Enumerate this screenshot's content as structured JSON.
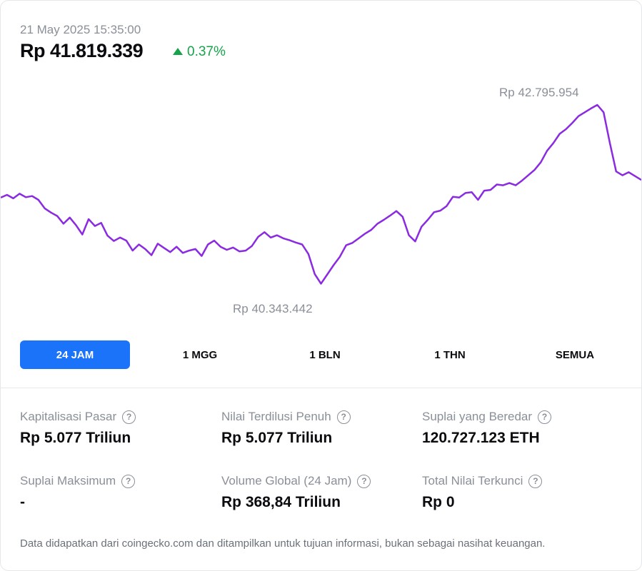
{
  "header": {
    "timestamp": "21 May 2025 15:35:00",
    "price": "Rp 41.819.339",
    "change": "0.37%",
    "change_direction": "up",
    "change_color": "#16a34a"
  },
  "chart_data": {
    "type": "line",
    "high_label": "Rp 42.795.954",
    "low_label": "Rp 40.343.442",
    "ylim": [
      40343442,
      42795954
    ],
    "line_color": "#8a2be2",
    "series": [
      {
        "values": [
          41590000,
          41625000,
          41580000,
          41640000,
          41595000,
          41610000,
          41560000,
          41450000,
          41395000,
          41350000,
          41250000,
          41330000,
          41230000,
          41110000,
          41310000,
          41220000,
          41260000,
          41095000,
          41025000,
          41070000,
          41030000,
          40900000,
          40980000,
          40920000,
          40840000,
          40990000,
          40935000,
          40880000,
          40950000,
          40870000,
          40900000,
          40920000,
          40830000,
          40980000,
          41030000,
          40950000,
          40910000,
          40940000,
          40890000,
          40900000,
          40960000,
          41080000,
          41140000,
          41070000,
          41100000,
          41060000,
          41035000,
          41005000,
          40980000,
          40855000,
          40595000,
          40470000,
          40590000,
          40710000,
          40820000,
          40970000,
          41000000,
          41060000,
          41120000,
          41170000,
          41250000,
          41300000,
          41355000,
          41415000,
          41340000,
          41100000,
          41020000,
          41210000,
          41300000,
          41400000,
          41420000,
          41480000,
          41600000,
          41590000,
          41650000,
          41660000,
          41560000,
          41680000,
          41690000,
          41760000,
          41750000,
          41780000,
          41750000,
          41810000,
          41880000,
          41950000,
          42050000,
          42200000,
          42300000,
          42420000,
          42480000,
          42560000,
          42650000,
          42700000,
          42750000,
          42795954,
          42700000,
          42300000,
          41930000,
          41880000,
          41920000,
          41870000,
          41819339
        ]
      }
    ]
  },
  "tabs": [
    {
      "label": "24 JAM",
      "active": true
    },
    {
      "label": "1 MGG",
      "active": false
    },
    {
      "label": "1 BLN",
      "active": false
    },
    {
      "label": "1 THN",
      "active": false
    },
    {
      "label": "SEMUA",
      "active": false
    }
  ],
  "stats": {
    "market_cap": {
      "label": "Kapitalisasi Pasar",
      "value": "Rp 5.077 Triliun"
    },
    "fdv": {
      "label": "Nilai Terdilusi Penuh",
      "value": "Rp 5.077 Triliun"
    },
    "circulating": {
      "label": "Suplai yang Beredar",
      "value": "120.727.123 ETH"
    },
    "max_supply": {
      "label": "Suplai Maksimum",
      "value": "-"
    },
    "volume": {
      "label": "Volume Global (24 Jam)",
      "value": "Rp 368,84 Triliun"
    },
    "tvl": {
      "label": "Total Nilai Terkunci",
      "value": "Rp 0"
    }
  },
  "help_icon": "question-circle-icon",
  "footer": "Data didapatkan dari coingecko.com dan ditampilkan untuk tujuan informasi, bukan sebagai nasihat keuangan.",
  "colors": {
    "accent": "#1a73f8",
    "line": "#8a2be2",
    "positive": "#16a34a"
  }
}
